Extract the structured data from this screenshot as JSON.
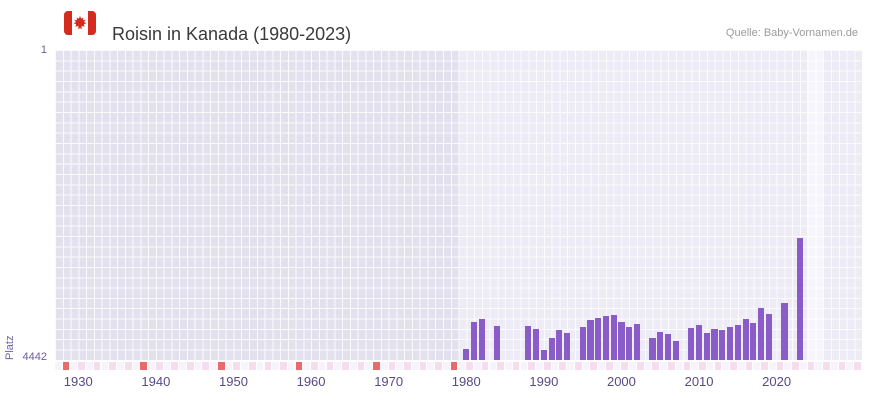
{
  "header": {
    "title": "Roisin in Kanada (1980-2023)",
    "source": "Quelle: Baby-Vornamen.de"
  },
  "axes": {
    "y_label": "Platz",
    "y_ticks": [
      "1",
      "4442"
    ],
    "x_ticks": [
      "1930",
      "1940",
      "1950",
      "1960",
      "1970",
      "1980",
      "1990",
      "2000",
      "2010",
      "2020"
    ],
    "x_min": 1927,
    "x_max": 2031
  },
  "bands": [
    {
      "name": "pre-data-era",
      "from": 1927,
      "to": 1979,
      "color": "#e4e1ef"
    },
    {
      "name": "current-year-highlight",
      "from": 2023.9,
      "to": 2026,
      "color": "#f6f5fb"
    }
  ],
  "timeline_strip": {
    "red_years": [
      1928,
      1938,
      1948,
      1958,
      1968,
      1978
    ],
    "red_color": "#e96a6a",
    "pink_color": "#f6dded",
    "base_color": "#f7f3fa"
  },
  "colors": {
    "bar": "#8a5cc8",
    "plot_background": "#edebf6",
    "axis_text": "#6a5d99",
    "title_text": "#3a3a3a",
    "flag_red": "#d52b1e"
  },
  "chart_data": {
    "type": "bar",
    "title": "Roisin in Kanada (1980-2023)",
    "xlabel": "",
    "ylabel": "Platz",
    "y_axis_reversed": true,
    "ylim": [
      1,
      4442
    ],
    "xlim": [
      1927,
      2031
    ],
    "legend": "none",
    "grid": true,
    "bar_color": "#8a5cc8",
    "years": [
      1980,
      1981,
      1982,
      1984,
      1988,
      1989,
      1990,
      1991,
      1992,
      1993,
      1995,
      1996,
      1997,
      1998,
      1999,
      2000,
      2001,
      2002,
      2004,
      2005,
      2006,
      2007,
      2009,
      2010,
      2011,
      2012,
      2013,
      2014,
      2015,
      2016,
      2017,
      2018,
      2019,
      2021,
      2023
    ],
    "values": [
      4280,
      3900,
      3860,
      3960,
      3950,
      4000,
      4300,
      4120,
      4010,
      4050,
      3970,
      3870,
      3840,
      3810,
      3790,
      3900,
      3970,
      3920,
      4130,
      4040,
      4070,
      4170,
      3980,
      3940,
      4050,
      4000,
      4010,
      3970,
      3940,
      3850,
      3910,
      3700,
      3780,
      3630,
      2700
    ]
  }
}
